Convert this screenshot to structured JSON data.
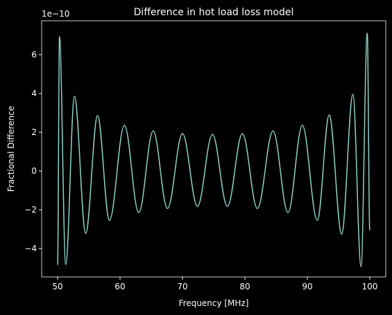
{
  "chart_data": {
    "type": "line",
    "title": "Difference in hot load loss model",
    "x_label": "Frequency [MHz]",
    "y_label": "Fractional Difference",
    "y_offset_label": "1e−10",
    "x": [
      50,
      50.3,
      51.3,
      52.7,
      54.5,
      56.4,
      58.3,
      60.7,
      63.0,
      65.3,
      67.6,
      70.0,
      72.4,
      74.8,
      77.2,
      79.6,
      82.0,
      84.5,
      86.9,
      89.2,
      91.6,
      93.5,
      95.5,
      97.3,
      98.6,
      99.6,
      100
    ],
    "series": [
      {
        "color": "#8dd3c7",
        "values": [
          -4.85,
          6.93,
          -4.82,
          3.86,
          -3.21,
          2.86,
          -2.54,
          2.36,
          -2.14,
          2.07,
          -1.93,
          1.93,
          -1.82,
          1.89,
          -1.82,
          1.93,
          -1.93,
          2.07,
          -2.14,
          2.36,
          -2.54,
          2.89,
          -3.25,
          3.96,
          -4.93,
          7.11,
          -3.07
        ]
      }
    ],
    "xlim": [
      47.44,
      102.56
    ],
    "ylim": [
      -5.46,
      7.75
    ],
    "xticks": [
      50,
      60,
      70,
      80,
      90,
      100
    ],
    "yticks": [
      {
        "value": -4,
        "label": "−4"
      },
      {
        "value": -2,
        "label": "−2"
      },
      0,
      2,
      4,
      6
    ]
  }
}
